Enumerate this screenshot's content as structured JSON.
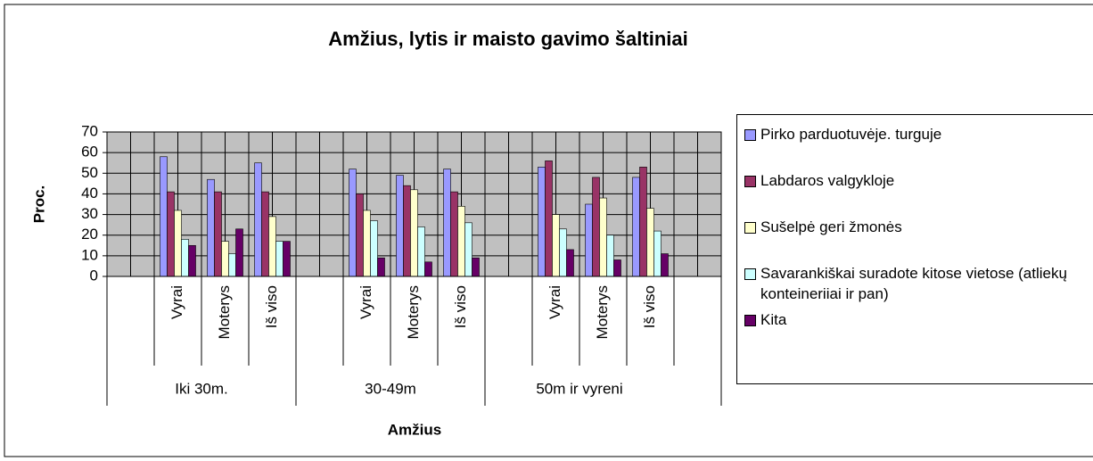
{
  "chart_data": {
    "type": "bar",
    "title": "Amžius, lytis ir maisto gavimo šaltiniai",
    "y_label": "Proc.",
    "x_label": "Amžius",
    "categories": [
      null,
      "Vyrai",
      "Moterys",
      "Iš viso",
      null,
      "Vyrai",
      "Moterys",
      "Iš viso",
      null,
      "Vyrai",
      "Moterys",
      "Iš viso",
      null
    ],
    "category_groups": [
      "Iki 30m.",
      "30-49m",
      "50m ir vyreni"
    ],
    "series": [
      {
        "name": "Pirko parduotuvėje. turguje",
        "color": "#9999ff",
        "values": [
          null,
          58,
          47,
          55,
          null,
          52,
          49,
          52,
          null,
          53,
          35,
          48,
          null
        ]
      },
      {
        "name": "Labdaros valgykloje",
        "color": "#993366",
        "values": [
          null,
          41,
          41,
          41,
          null,
          40,
          44,
          41,
          null,
          56,
          48,
          53,
          null
        ]
      },
      {
        "name": "Sušelpė geri žmonės",
        "color": "#ffffcc",
        "values": [
          null,
          32,
          17,
          29,
          null,
          32,
          42,
          34,
          null,
          30,
          38,
          33,
          null
        ]
      },
      {
        "name": "Savarankiškai suradote kitose vietose (atliekų konteineriiai ir pan)",
        "color": "#ccffff",
        "values": [
          null,
          18,
          11,
          17,
          null,
          27,
          24,
          26,
          null,
          23,
          20,
          22,
          null
        ]
      },
      {
        "name": "Kita",
        "color": "#660066",
        "values": [
          null,
          15,
          23,
          17,
          null,
          9,
          7,
          9,
          null,
          13,
          8,
          11,
          null
        ]
      }
    ],
    "ylim": [
      0,
      70
    ],
    "yticks": [
      0,
      10,
      20,
      30,
      40,
      50,
      60,
      70
    ],
    "grid": true,
    "plot_background": "#c0c0c0",
    "legend": "right"
  }
}
